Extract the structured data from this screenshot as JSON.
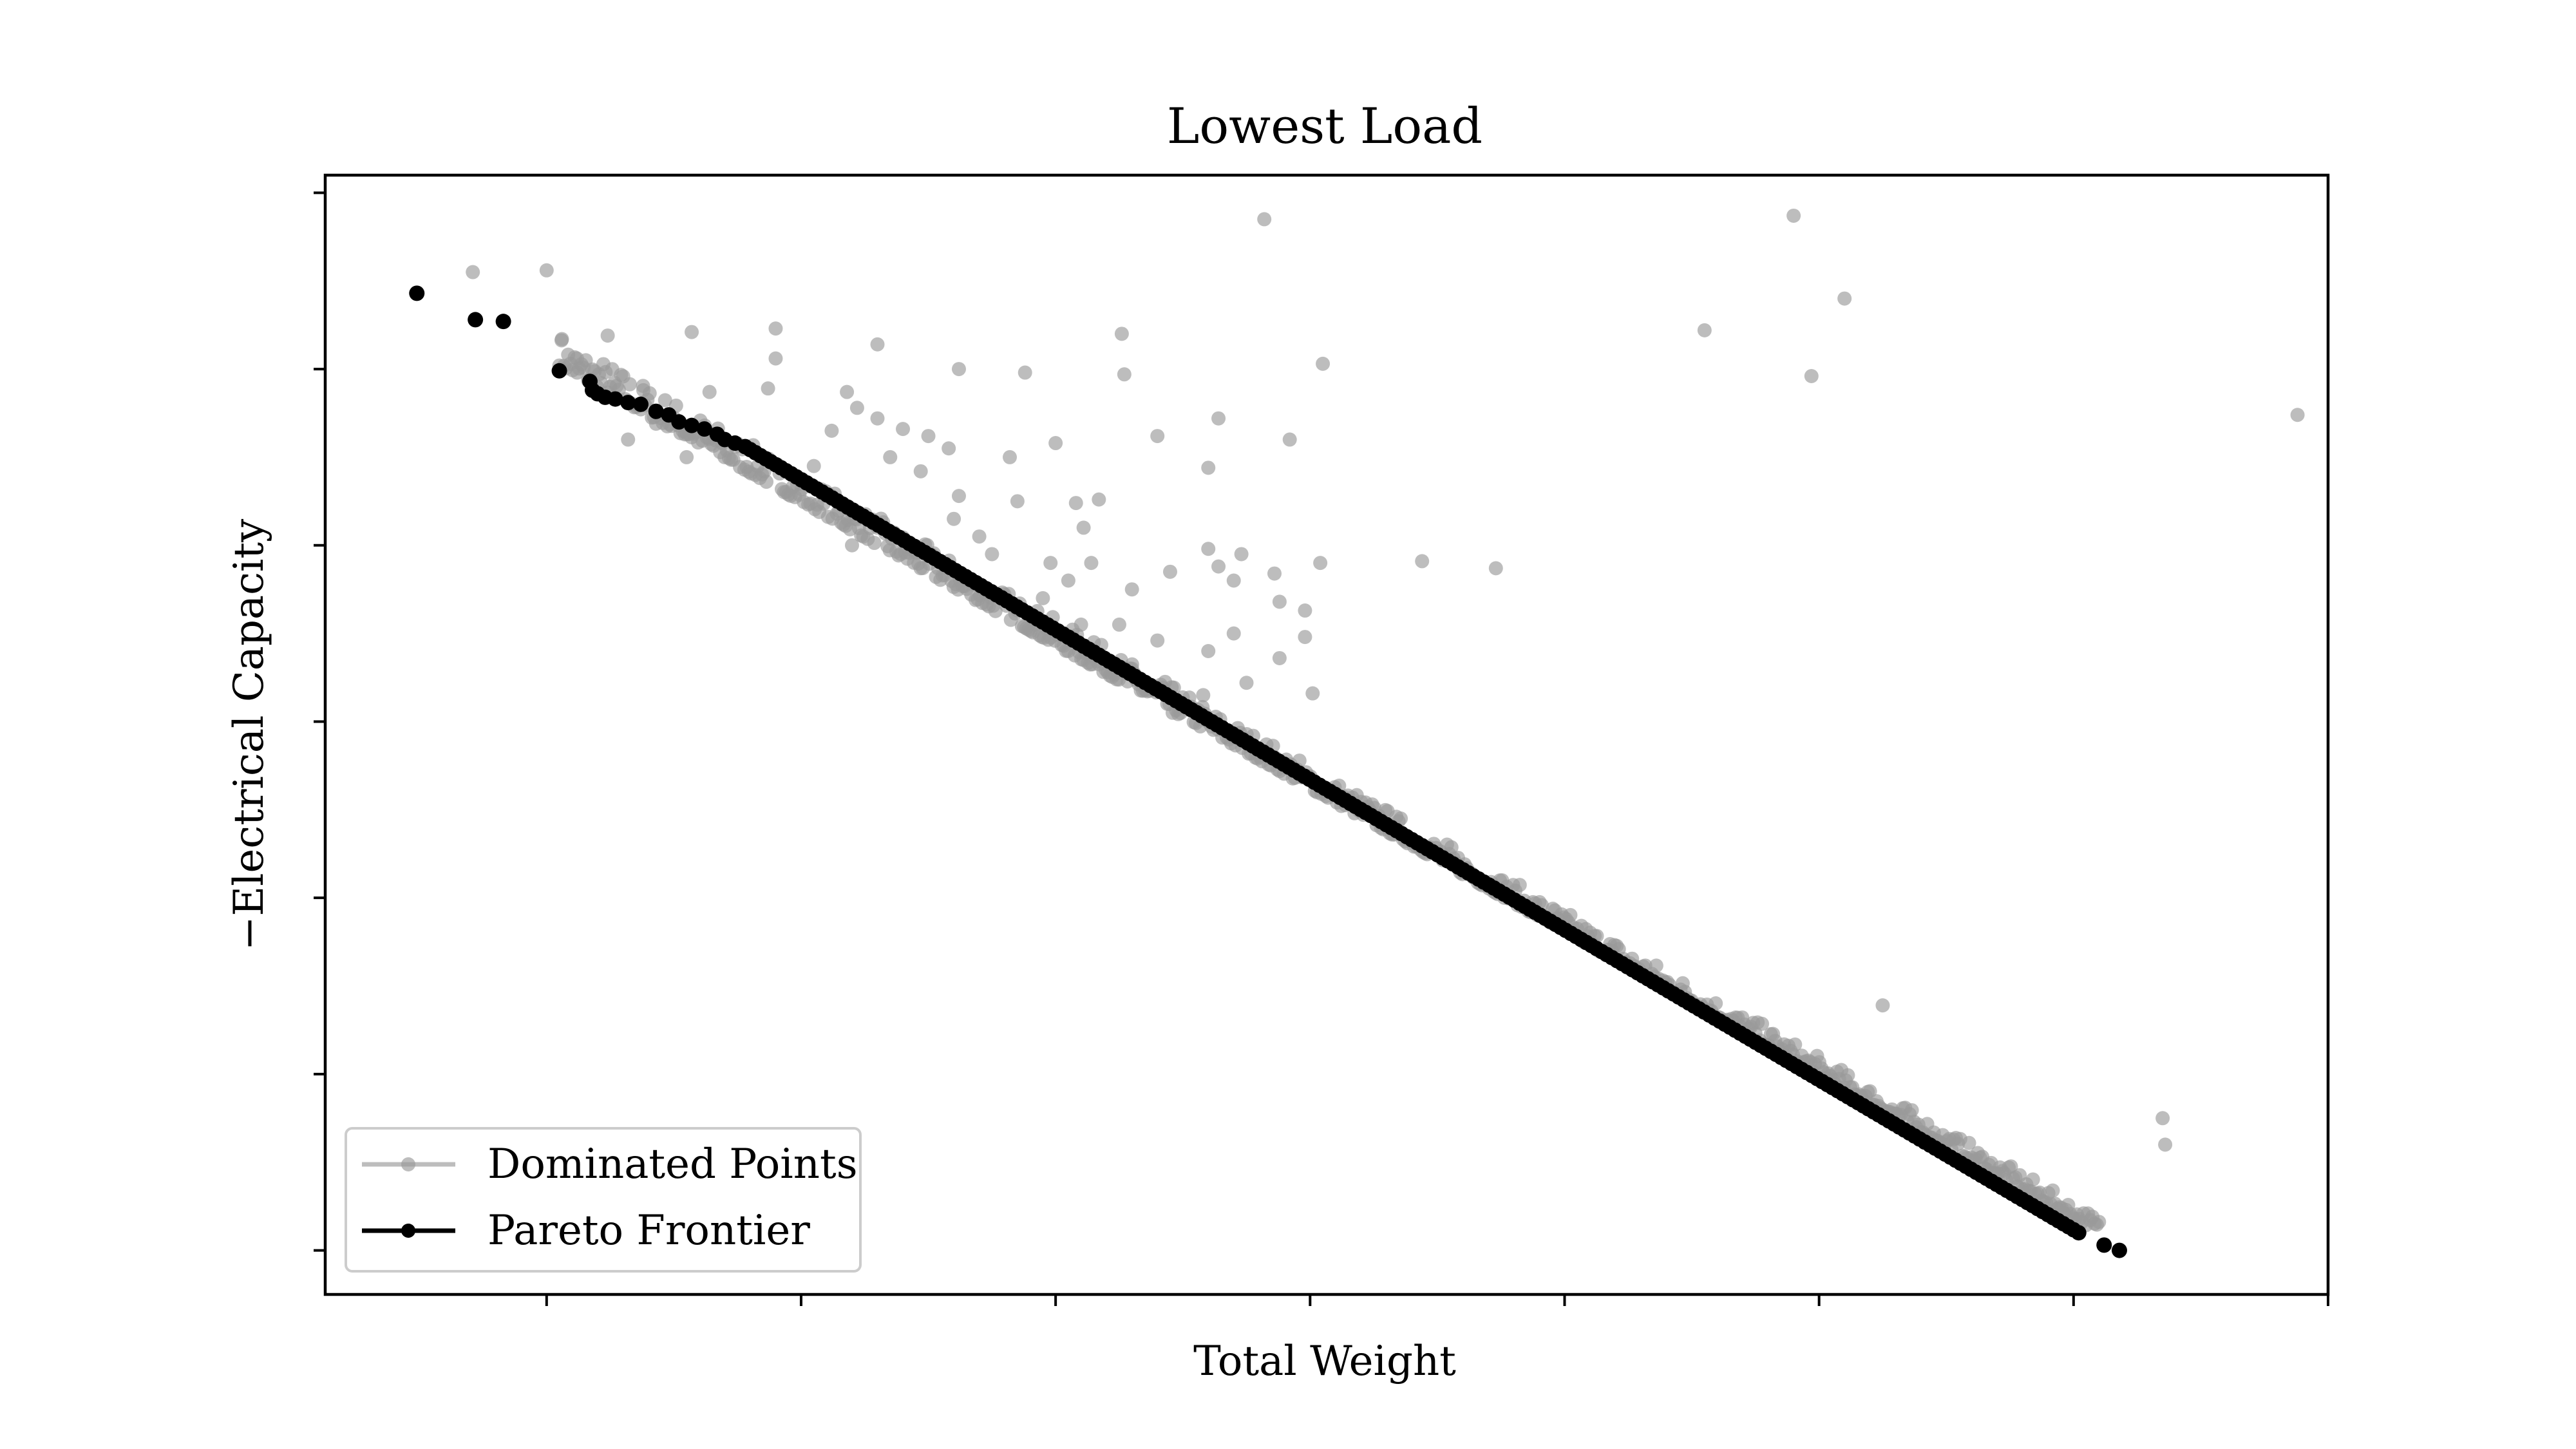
{
  "chart_data": {
    "type": "scatter",
    "title": "Lowest Load",
    "xlabel": "Total Weight",
    "ylabel": "−Electrical Capacity",
    "xlim": [
      -0.87,
      7.0
    ],
    "ylim": [
      -0.25,
      6.1
    ],
    "xticks": [
      0,
      1,
      2,
      3,
      4,
      5,
      6,
      7
    ],
    "yticks": [
      0,
      1,
      2,
      3,
      4,
      5,
      6
    ],
    "tick_labels_visible": false,
    "grid": false,
    "legend_position": "lower left",
    "colors": {
      "dominated": "#999999",
      "pareto": "#000000",
      "axes": "#000000"
    },
    "series": [
      {
        "name": "Dominated Points",
        "style": "scatter",
        "points": [
          [
            -0.29,
            5.55
          ],
          [
            0.0,
            5.56
          ],
          [
            2.82,
            5.85
          ],
          [
            4.9,
            5.87
          ],
          [
            5.1,
            5.4
          ],
          [
            4.55,
            5.22
          ],
          [
            4.97,
            4.96
          ],
          [
            6.88,
            4.74
          ],
          [
            0.06,
            5.17
          ],
          [
            0.24,
            5.19
          ],
          [
            0.57,
            5.21
          ],
          [
            0.9,
            5.23
          ],
          [
            0.9,
            5.06
          ],
          [
            1.3,
            5.14
          ],
          [
            1.62,
            5.0
          ],
          [
            1.88,
            4.98
          ],
          [
            2.26,
            5.2
          ],
          [
            2.27,
            4.97
          ],
          [
            3.05,
            5.03
          ],
          [
            0.12,
            4.98
          ],
          [
            0.38,
            4.88
          ],
          [
            0.64,
            4.87
          ],
          [
            0.87,
            4.89
          ],
          [
            1.18,
            4.87
          ],
          [
            1.22,
            4.78
          ],
          [
            1.3,
            4.72
          ],
          [
            1.58,
            4.55
          ],
          [
            2.0,
            4.58
          ],
          [
            2.4,
            4.62
          ],
          [
            2.64,
            4.72
          ],
          [
            2.92,
            4.6
          ],
          [
            2.6,
            4.44
          ],
          [
            1.82,
            4.5
          ],
          [
            1.35,
            4.5
          ],
          [
            1.62,
            4.28
          ],
          [
            2.08,
            4.24
          ],
          [
            2.17,
            4.26
          ],
          [
            2.11,
            4.1
          ],
          [
            2.6,
            3.98
          ],
          [
            2.73,
            3.95
          ],
          [
            2.98,
            3.63
          ],
          [
            3.04,
            3.9
          ],
          [
            3.44,
            3.91
          ],
          [
            3.73,
            3.87
          ],
          [
            2.86,
            3.84
          ],
          [
            2.14,
            3.9
          ],
          [
            1.98,
            3.9
          ],
          [
            2.64,
            3.88
          ],
          [
            2.7,
            3.8
          ],
          [
            2.88,
            3.36
          ],
          [
            2.98,
            3.48
          ],
          [
            2.88,
            3.68
          ],
          [
            2.05,
            3.8
          ],
          [
            1.95,
            3.7
          ],
          [
            2.25,
            3.55
          ],
          [
            2.4,
            3.46
          ],
          [
            2.6,
            3.4
          ],
          [
            2.7,
            3.5
          ],
          [
            2.75,
            3.22
          ],
          [
            3.01,
            3.16
          ],
          [
            2.15,
            3.45
          ],
          [
            2.3,
            3.3
          ],
          [
            2.58,
            3.15
          ],
          [
            2.46,
            3.05
          ],
          [
            5.25,
            1.39
          ],
          [
            6.35,
            0.75
          ],
          [
            6.36,
            0.6
          ],
          [
            1.4,
            4.66
          ],
          [
            1.5,
            4.62
          ],
          [
            1.47,
            4.42
          ],
          [
            1.85,
            4.25
          ],
          [
            1.6,
            4.15
          ],
          [
            1.7,
            4.05
          ],
          [
            1.75,
            3.95
          ],
          [
            1.3,
            4.1
          ],
          [
            1.5,
            3.95
          ],
          [
            1.2,
            4.0
          ],
          [
            2.1,
            3.55
          ],
          [
            2.3,
            3.75
          ],
          [
            2.45,
            3.85
          ],
          [
            1.12,
            4.65
          ],
          [
            1.05,
            4.45
          ],
          [
            0.8,
            4.55
          ],
          [
            0.66,
            4.63
          ],
          [
            0.43,
            4.69
          ],
          [
            0.55,
            4.5
          ],
          [
            0.32,
            4.6
          ]
        ],
        "band": {
          "x_start": 0.05,
          "x_end": 6.1,
          "y_start": 5.0,
          "y_end": 0.08,
          "offset_max": 0.18
        }
      },
      {
        "name": "Pareto Frontier",
        "style": "line-markers",
        "points": [
          [
            -0.51,
            5.43
          ],
          [
            -0.28,
            5.28
          ],
          [
            -0.17,
            5.27
          ],
          [
            0.05,
            4.99
          ],
          [
            0.17,
            4.93
          ],
          [
            0.18,
            4.88
          ],
          [
            0.2,
            4.86
          ],
          [
            0.23,
            4.84
          ],
          [
            0.27,
            4.83
          ],
          [
            0.32,
            4.81
          ],
          [
            0.37,
            4.8
          ],
          [
            0.43,
            4.76
          ],
          [
            0.48,
            4.74
          ],
          [
            0.52,
            4.7
          ],
          [
            0.57,
            4.68
          ],
          [
            0.62,
            4.66
          ],
          [
            0.67,
            4.63
          ],
          [
            0.7,
            4.6
          ],
          [
            0.74,
            4.58
          ],
          [
            0.78,
            4.56
          ]
        ],
        "frontier_line": {
          "x_start": 0.78,
          "x_end": 6.02,
          "y_start": 4.56,
          "y_end": 0.1
        }
      }
    ]
  }
}
